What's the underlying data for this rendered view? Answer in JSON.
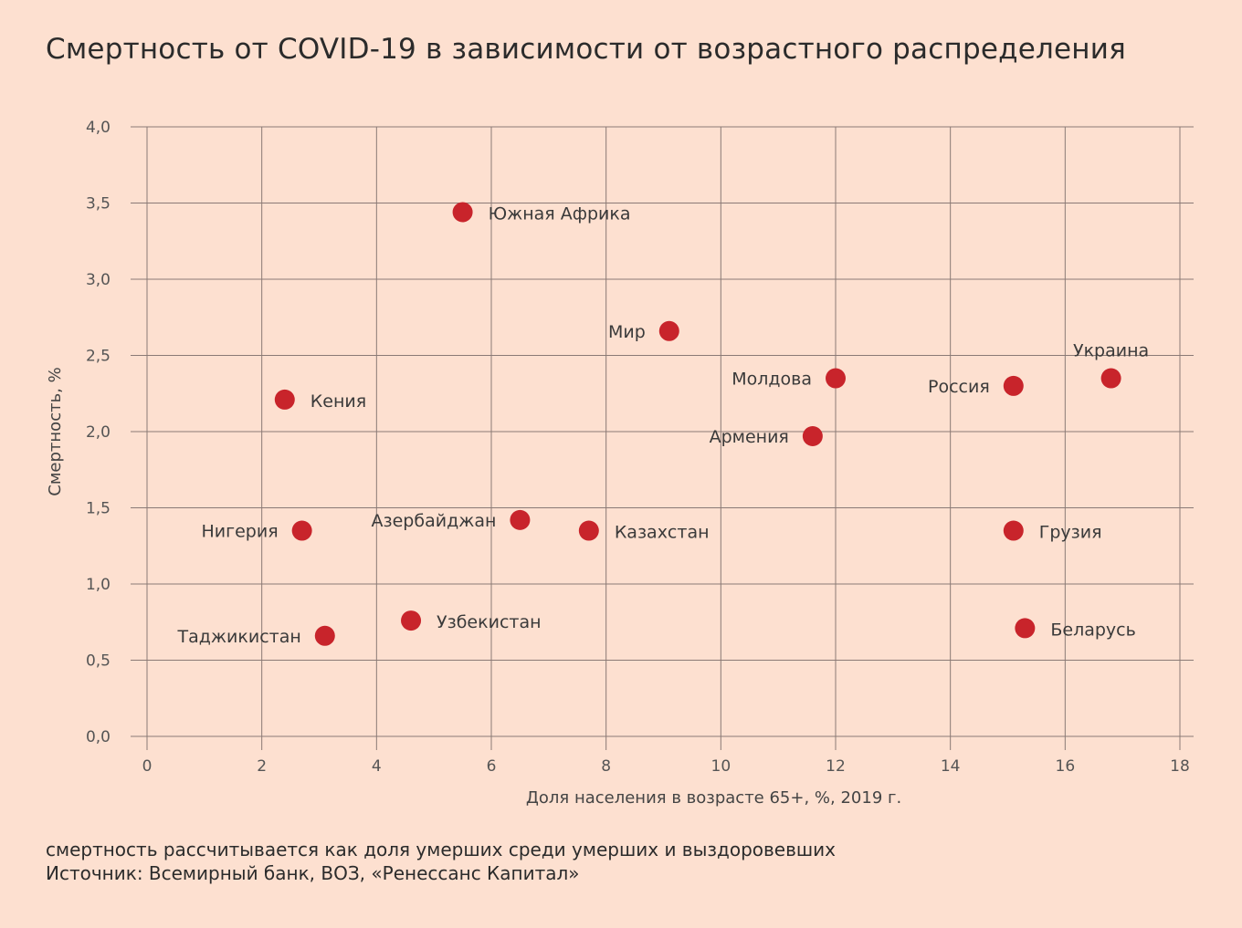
{
  "title": "Смертность от COVID-19 в зависимости от возрастного распределения",
  "footnote": "смертность рассчитывается как доля умерших среди умерших и выздоровевших",
  "source": "Источник: Всемирный банк, ВОЗ, «Ренессанс Капитал»",
  "colors": {
    "background": "#fde0d0",
    "grid": "#8a7a76",
    "point": "#c8242b"
  },
  "chart_data": {
    "type": "scatter",
    "xlabel": "Доля населения в возрасте 65+, %, 2019 г.",
    "ylabel": "Смертность, %",
    "xlim": [
      0,
      18
    ],
    "ylim": [
      0,
      4
    ],
    "x_ticks": [
      "0",
      "2",
      "4",
      "6",
      "8",
      "10",
      "12",
      "14",
      "16",
      "18"
    ],
    "y_ticks": [
      "0,0",
      "0,5",
      "1,0",
      "1,5",
      "2,0",
      "2,5",
      "3,0",
      "3,5",
      "4,0"
    ],
    "grid": true,
    "points": [
      {
        "label": "Южная Африка",
        "x": 5.5,
        "y": 3.44,
        "label_side": "right"
      },
      {
        "label": "Мир",
        "x": 9.1,
        "y": 2.66,
        "label_side": "left"
      },
      {
        "label": "Кения",
        "x": 2.4,
        "y": 2.21,
        "label_side": "right"
      },
      {
        "label": "Молдова",
        "x": 12.0,
        "y": 2.35,
        "label_side": "left"
      },
      {
        "label": "Россия",
        "x": 15.1,
        "y": 2.3,
        "label_side": "left"
      },
      {
        "label": "Украина",
        "x": 16.8,
        "y": 2.35,
        "label_side": "above"
      },
      {
        "label": "Армения",
        "x": 11.6,
        "y": 1.97,
        "label_side": "left"
      },
      {
        "label": "Нигерия",
        "x": 2.7,
        "y": 1.35,
        "label_side": "left"
      },
      {
        "label": "Азербайджан",
        "x": 6.5,
        "y": 1.42,
        "label_side": "left"
      },
      {
        "label": "Казахстан",
        "x": 7.7,
        "y": 1.35,
        "label_side": "right"
      },
      {
        "label": "Грузия",
        "x": 15.1,
        "y": 1.35,
        "label_side": "right"
      },
      {
        "label": "Узбекистан",
        "x": 4.6,
        "y": 0.76,
        "label_side": "right"
      },
      {
        "label": "Таджикистан",
        "x": 3.1,
        "y": 0.66,
        "label_side": "left"
      },
      {
        "label": "Беларусь",
        "x": 15.3,
        "y": 0.71,
        "label_side": "right"
      }
    ]
  }
}
